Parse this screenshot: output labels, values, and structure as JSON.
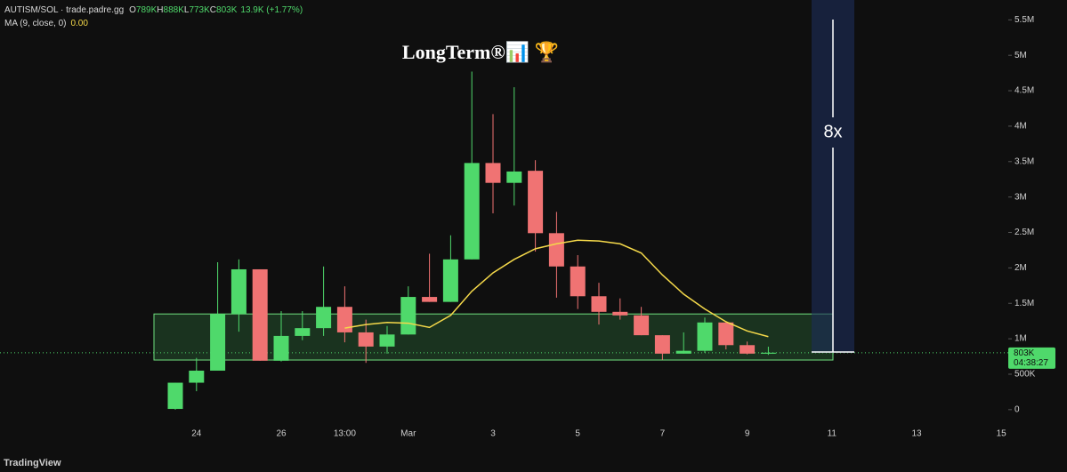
{
  "chart_data": {
    "type": "candlestick",
    "title": "LongTerm®📊 🏆",
    "header": {
      "symbol": "AUTISM/SOL · trade.padre.gg",
      "o_label": "O",
      "o": "789K",
      "h_label": "H",
      "h": "888K",
      "l_label": "L",
      "l": "773K",
      "c_label": "C",
      "c": "803K",
      "change": "13.9K (+1.77%)"
    },
    "indicator": {
      "name": "MA (9, close, 0)",
      "value": "0.00",
      "color": "#f5d94a",
      "values": [
        null,
        null,
        null,
        null,
        null,
        null,
        null,
        null,
        1150000,
        1200000,
        1230000,
        1220000,
        1160000,
        1330000,
        1670000,
        1930000,
        2120000,
        2270000,
        2340000,
        2390000,
        2380000,
        2340000,
        2210000,
        1900000,
        1630000,
        1420000,
        1240000,
        1110000,
        1030000,
        null,
        null,
        null,
        null,
        null,
        null,
        null,
        null,
        null,
        null,
        null
      ]
    },
    "categories": [
      null,
      "24",
      null,
      null,
      null,
      "26",
      null,
      null,
      "13:00",
      null,
      null,
      "Mar",
      null,
      null,
      null,
      "3",
      null,
      null,
      null,
      "5",
      null,
      null,
      null,
      "7",
      null,
      null,
      null,
      "9",
      null,
      null,
      null,
      "11",
      null,
      null,
      null,
      "13",
      null,
      null,
      null,
      "15"
    ],
    "open": [
      10000,
      380000,
      550000,
      1350000,
      1980000,
      690000,
      1040000,
      1150000,
      1450000,
      1090000,
      890000,
      1060000,
      1590000,
      1520000,
      2120000,
      3480000,
      3200000,
      3370000,
      2490000,
      2020000,
      1600000,
      1380000,
      1330000,
      1050000,
      790000,
      830000,
      1230000,
      910000,
      789000,
      null,
      null,
      null,
      null,
      null,
      null,
      null,
      null,
      null,
      null,
      null
    ],
    "high": [
      380000,
      730000,
      2080000,
      2120000,
      1980000,
      1390000,
      1390000,
      2020000,
      1740000,
      1270000,
      1180000,
      1740000,
      2200000,
      2460000,
      4770000,
      4170000,
      4550000,
      3520000,
      2790000,
      2180000,
      1790000,
      1570000,
      1450000,
      1050000,
      1090000,
      1300000,
      1230000,
      960000,
      888000,
      null,
      null,
      null,
      null,
      null,
      null,
      null,
      null,
      null,
      null,
      null
    ],
    "low": [
      0,
      260000,
      550000,
      1100000,
      690000,
      680000,
      980000,
      1040000,
      950000,
      660000,
      790000,
      1060000,
      1520000,
      1520000,
      2120000,
      2770000,
      2880000,
      2230000,
      1580000,
      1420000,
      1200000,
      1270000,
      1050000,
      700000,
      790000,
      800000,
      850000,
      780000,
      773000,
      null,
      null,
      null,
      null,
      null,
      null,
      null,
      null,
      null,
      null,
      null
    ],
    "close": [
      380000,
      550000,
      1350000,
      1980000,
      690000,
      1040000,
      1150000,
      1450000,
      1090000,
      890000,
      1060000,
      1590000,
      1520000,
      2120000,
      3480000,
      3200000,
      3360000,
      2490000,
      2020000,
      1600000,
      1380000,
      1330000,
      1050000,
      790000,
      830000,
      1230000,
      910000,
      790000,
      803000,
      null,
      null,
      null,
      null,
      null,
      null,
      null,
      null,
      null,
      null,
      null
    ],
    "up_color": "#4fd96b",
    "down_color": "#f07373",
    "zone": [
      700000,
      1350000
    ],
    "last_price": 803000,
    "last_price_label": "803K",
    "countdown": "04:38:27",
    "annotation": "8x",
    "ylim": [
      -140000,
      5780000
    ],
    "yticks": [
      {
        "value": 0,
        "label": "0"
      },
      {
        "value": 500000,
        "label": "500K"
      },
      {
        "value": 1000000,
        "label": "1M"
      },
      {
        "value": 1500000,
        "label": "1.5M"
      },
      {
        "value": 2000000,
        "label": "2M"
      },
      {
        "value": 2500000,
        "label": "2.5M"
      },
      {
        "value": 3000000,
        "label": "3M"
      },
      {
        "value": 3500000,
        "label": "3.5M"
      },
      {
        "value": 4000000,
        "label": "4M"
      },
      {
        "value": 4500000,
        "label": "4.5M"
      },
      {
        "value": 5000000,
        "label": "5M"
      },
      {
        "value": 5500000,
        "label": "5.5M"
      }
    ],
    "brand": "TradingView"
  }
}
